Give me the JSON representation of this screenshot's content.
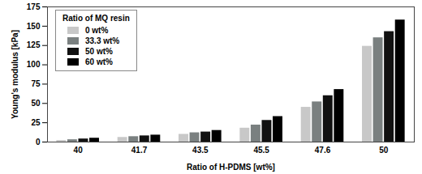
{
  "chart_data": {
    "type": "bar",
    "x_label": "Ratio of H-PDMS [wt%]",
    "y_label": "Young's modulus [kPa]",
    "legend_title": "Ratio of MQ resin",
    "categories": [
      "40",
      "41.7",
      "43.5",
      "45.5",
      "47.6",
      "50"
    ],
    "series": [
      {
        "name": "0 wt%",
        "color": "#c8c8c8",
        "values": [
          2,
          6,
          10,
          18,
          45,
          124
        ]
      },
      {
        "name": "33.3 wt%",
        "color": "#7a8080",
        "values": [
          3,
          7,
          12,
          22,
          52,
          135
        ]
      },
      {
        "name": "50 wt%",
        "color": "#111111",
        "values": [
          4,
          8,
          13,
          28,
          60,
          143
        ]
      },
      {
        "name": "60 wt%",
        "color": "#000000",
        "values": [
          5,
          9,
          15,
          33,
          68,
          158
        ]
      }
    ],
    "ylim": [
      0,
      175
    ],
    "yticks": [
      0,
      25,
      50,
      75,
      100,
      125,
      150,
      175
    ],
    "grid": false,
    "legend": "top-left"
  }
}
